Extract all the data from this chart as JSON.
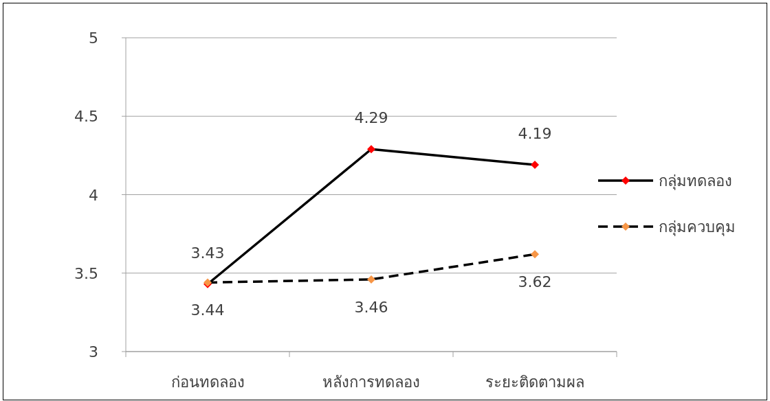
{
  "chart_data": {
    "type": "line",
    "categories": [
      "ก่อนทดลอง",
      "หลังการทดลอง",
      "ระยะติดตามผล"
    ],
    "series": [
      {
        "name": "กลุ่มทดลอง",
        "color": "#000000",
        "colors": [
          "#ff0000",
          "#ff0000",
          "#ff0000"
        ],
        "line_style": "solid",
        "values": [
          3.43,
          4.29,
          4.19
        ]
      },
      {
        "name": "กลุ่มควบคุม",
        "color": "#000000",
        "colors": [
          "#f79646",
          "#f79646",
          "#f79646"
        ],
        "line_style": "dashed",
        "values": [
          3.44,
          3.46,
          3.62
        ]
      }
    ],
    "ylim": [
      3,
      5
    ],
    "yticks": [
      3,
      3.5,
      4,
      4.5,
      5
    ],
    "grid": "y",
    "legend": "right",
    "marker": "diamond",
    "data_labels": true
  }
}
